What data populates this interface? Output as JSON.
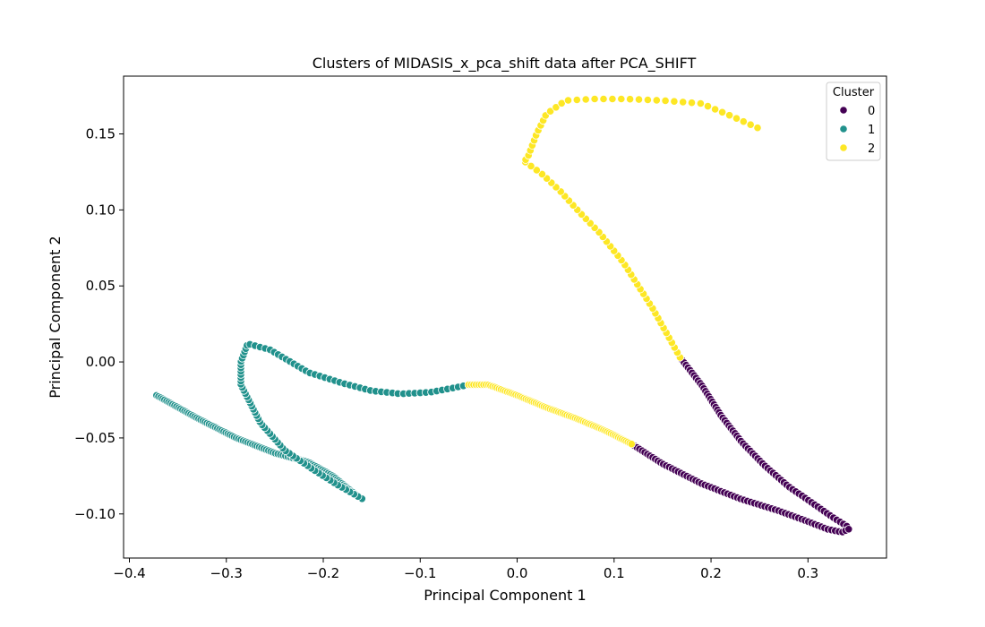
{
  "chart_data": {
    "type": "scatter",
    "title": "Clusters of MIDASIS_x_pca_shift data after PCA_SHIFT",
    "xlabel": "Principal Component 1",
    "ylabel": "Principal Component 2",
    "xlim": [
      -0.406,
      0.381
    ],
    "ylim": [
      -0.129,
      0.188
    ],
    "xticks": [
      -0.4,
      -0.3,
      -0.2,
      -0.1,
      0.0,
      0.1,
      0.2,
      0.3
    ],
    "xtick_labels": [
      "−0.4",
      "−0.3",
      "−0.2",
      "−0.1",
      "0.0",
      "0.1",
      "0.2",
      "0.3"
    ],
    "yticks": [
      -0.1,
      -0.05,
      0.0,
      0.05,
      0.1,
      0.15
    ],
    "ytick_labels": [
      "−0.10",
      "−0.05",
      "0.00",
      "0.05",
      "0.10",
      "0.15"
    ],
    "grid": false,
    "legend": {
      "title": "Cluster",
      "placement": "top-right"
    },
    "series": [
      {
        "name": "0",
        "color": "#440154",
        "path": [
          [
            0.168,
            0.003
          ],
          [
            0.19,
            -0.015
          ],
          [
            0.21,
            -0.035
          ],
          [
            0.232,
            -0.053
          ],
          [
            0.255,
            -0.068
          ],
          [
            0.28,
            -0.082
          ],
          [
            0.305,
            -0.093
          ],
          [
            0.325,
            -0.102
          ],
          [
            0.34,
            -0.108
          ]
        ],
        "path2": [
          [
            0.118,
            -0.054
          ],
          [
            0.15,
            -0.067
          ],
          [
            0.19,
            -0.08
          ],
          [
            0.23,
            -0.09
          ],
          [
            0.27,
            -0.098
          ],
          [
            0.3,
            -0.105
          ],
          [
            0.32,
            -0.11
          ],
          [
            0.335,
            -0.112
          ],
          [
            0.342,
            -0.11
          ]
        ],
        "count": 140
      },
      {
        "name": "1",
        "color": "#21918c",
        "path": [
          [
            -0.372,
            -0.022
          ],
          [
            -0.33,
            -0.037
          ],
          [
            -0.29,
            -0.05
          ],
          [
            -0.25,
            -0.06
          ],
          [
            -0.215,
            -0.066
          ],
          [
            -0.19,
            -0.075
          ],
          [
            -0.165,
            -0.088
          ],
          [
            -0.16,
            -0.09
          ]
        ],
        "path2": [
          [
            -0.16,
            -0.09
          ],
          [
            -0.185,
            -0.081
          ],
          [
            -0.21,
            -0.071
          ],
          [
            -0.24,
            -0.058
          ],
          [
            -0.265,
            -0.04
          ],
          [
            -0.285,
            -0.015
          ],
          [
            -0.285,
            0.0
          ],
          [
            -0.278,
            0.012
          ],
          [
            -0.255,
            0.008
          ],
          [
            -0.215,
            -0.007
          ],
          [
            -0.18,
            -0.014
          ],
          [
            -0.15,
            -0.019
          ],
          [
            -0.12,
            -0.021
          ],
          [
            -0.09,
            -0.02
          ],
          [
            -0.065,
            -0.017
          ],
          [
            -0.05,
            -0.015
          ]
        ],
        "count": 200
      },
      {
        "name": "2",
        "color": "#fde725",
        "path": [
          [
            -0.05,
            -0.015
          ],
          [
            -0.03,
            -0.015
          ],
          [
            0.0,
            -0.022
          ],
          [
            0.03,
            -0.03
          ],
          [
            0.06,
            -0.037
          ],
          [
            0.09,
            -0.045
          ],
          [
            0.118,
            -0.054
          ]
        ],
        "path2": [
          [
            0.168,
            0.003
          ],
          [
            0.14,
            0.035
          ],
          [
            0.11,
            0.065
          ],
          [
            0.085,
            0.085
          ],
          [
            0.065,
            0.098
          ],
          [
            0.045,
            0.112
          ],
          [
            0.025,
            0.124
          ],
          [
            0.005,
            0.133
          ],
          [
            0.01,
            0.133
          ],
          [
            0.02,
            0.15
          ],
          [
            0.03,
            0.163
          ],
          [
            0.05,
            0.172
          ],
          [
            0.08,
            0.173
          ],
          [
            0.11,
            0.173
          ],
          [
            0.15,
            0.172
          ],
          [
            0.19,
            0.17
          ],
          [
            0.22,
            0.162
          ],
          [
            0.248,
            0.154
          ]
        ],
        "count": 160
      }
    ]
  }
}
